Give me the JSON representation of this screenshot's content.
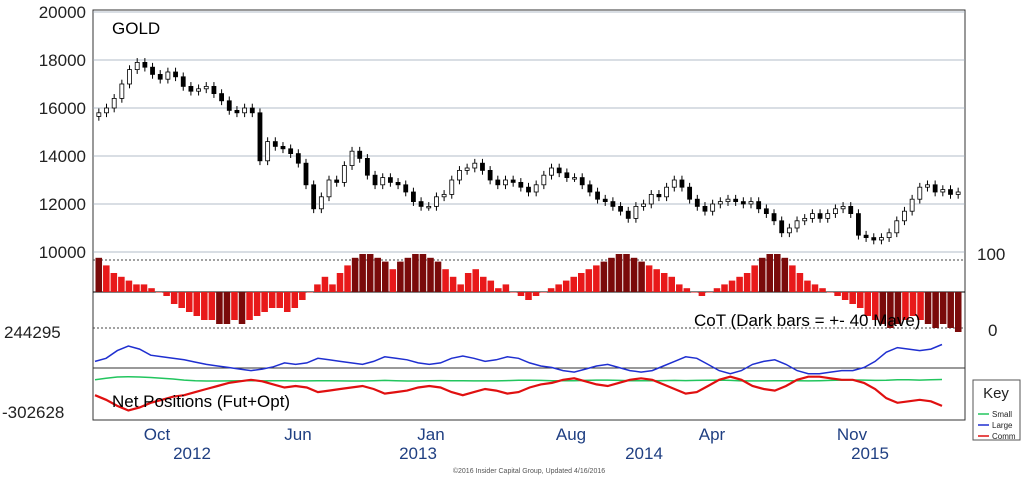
{
  "colors": {
    "frame_bg": "#ffffff",
    "up_candle": "#ffffff",
    "down_candle": "#000000",
    "cot_bar": "#e8191a",
    "cot_dark_bar": "#7a0a0a",
    "small": "#22c55e",
    "large": "#1f2fd0",
    "comm": "#e01010",
    "axis_text": "#1f3f82"
  },
  "chart_data": [
    {
      "type": "candlestick",
      "title": "GOLD",
      "y_ticks": [
        "20000",
        "18000",
        "16000",
        "14000",
        "12000",
        "10000"
      ],
      "ylim": [
        10000,
        20000
      ],
      "grid": true,
      "close": [
        15800,
        16000,
        16400,
        17000,
        17600,
        17900,
        17700,
        17400,
        17200,
        17500,
        17300,
        16900,
        16700,
        16800,
        16900,
        16600,
        16300,
        15900,
        15800,
        16000,
        15800,
        13800,
        14600,
        14400,
        14300,
        14100,
        13700,
        12800,
        11800,
        12300,
        13000,
        12900,
        13600,
        14200,
        13900,
        13200,
        12800,
        13100,
        12900,
        12800,
        12500,
        12100,
        11900,
        11900,
        12300,
        12400,
        13000,
        13400,
        13500,
        13700,
        13400,
        13000,
        12800,
        13000,
        12900,
        12700,
        12500,
        12800,
        13200,
        13500,
        13300,
        13100,
        13100,
        12800,
        12500,
        12200,
        12100,
        11900,
        11700,
        11400,
        11900,
        12000,
        12400,
        12300,
        12700,
        13000,
        12700,
        12200,
        11900,
        11700,
        12000,
        12100,
        12200,
        12100,
        12000,
        12100,
        11800,
        11600,
        11300,
        10800,
        11000,
        11300,
        11400,
        11600,
        11400,
        11600,
        11800,
        11900,
        11600,
        10700,
        10600,
        10500,
        10600,
        10800,
        11300,
        11700,
        12200,
        12700,
        12800,
        12500,
        12600,
        12400,
        12500
      ],
      "ohlc_note": ""
    },
    {
      "type": "bar",
      "title": "CoT (Dark bars = +- 40 Mave)",
      "y_ticks": [
        "100",
        "0"
      ],
      "ylim": [
        0,
        100
      ],
      "values": [
        95,
        85,
        75,
        70,
        65,
        60,
        60,
        55,
        50,
        45,
        35,
        30,
        25,
        20,
        15,
        15,
        10,
        10,
        15,
        10,
        15,
        20,
        25,
        30,
        30,
        25,
        30,
        40,
        50,
        60,
        70,
        60,
        75,
        85,
        95,
        100,
        100,
        95,
        90,
        80,
        90,
        95,
        100,
        100,
        95,
        90,
        80,
        70,
        60,
        75,
        80,
        70,
        65,
        55,
        60,
        50,
        45,
        40,
        45,
        50,
        55,
        60,
        65,
        70,
        75,
        80,
        85,
        90,
        95,
        100,
        100,
        95,
        90,
        85,
        80,
        75,
        70,
        60,
        55,
        50,
        45,
        50,
        55,
        60,
        65,
        70,
        75,
        85,
        95,
        100,
        100,
        95,
        85,
        75,
        65,
        60,
        55,
        50,
        45,
        40,
        35,
        30,
        20,
        15,
        10,
        5,
        10,
        15,
        20,
        15,
        10,
        5,
        10,
        5,
        0
      ],
      "dark_bars_note": ""
    },
    {
      "type": "line",
      "title": "Net Positions (Fut+Opt)",
      "y_ticks": [
        "244295",
        "-302628"
      ],
      "ylim": [
        -302628,
        244295
      ],
      "x_ticks": [
        "Oct",
        "Jun",
        "Jan",
        "Aug",
        "Apr",
        "Nov"
      ],
      "x_year_ticks": [
        "2012",
        "2013",
        "2014",
        "2015"
      ],
      "series": [
        {
          "name": "Small",
          "values": [
            -80000,
            -70000,
            -62000,
            -60000,
            -62000,
            -65000,
            -70000,
            -75000,
            -82000,
            -86000,
            -88000,
            -88000,
            -87000,
            -86000,
            -86000,
            -87000,
            -86000,
            -86000,
            -88000,
            -87000,
            -86000,
            -86000,
            -87000,
            -88000,
            -88000,
            -86000,
            -84000,
            -86000,
            -88000,
            -88000,
            -86000,
            -85000,
            -86000,
            -86000,
            -87000,
            -87000,
            -87000,
            -85000,
            -83000,
            -83000,
            -84000,
            -86000,
            -86000,
            -86000,
            -84000,
            -82000,
            -82000,
            -84000,
            -86000,
            -86000,
            -86000,
            -85000,
            -84000,
            -85000,
            -84000,
            -83000,
            -82000,
            -84000,
            -87000,
            -87000,
            -87000,
            -86000,
            -86000,
            -86000,
            -87000,
            -86000,
            -84000,
            -82000,
            -81000,
            -82000,
            -84000,
            -83000,
            -80000,
            -80000,
            -82000,
            -80000,
            -78000
          ]
        },
        {
          "name": "Large",
          "values": [
            40000,
            60000,
            110000,
            140000,
            120000,
            80000,
            70000,
            60000,
            50000,
            35000,
            20000,
            10000,
            0,
            -10000,
            -20000,
            -10000,
            5000,
            30000,
            20000,
            30000,
            60000,
            50000,
            40000,
            30000,
            20000,
            40000,
            70000,
            60000,
            50000,
            30000,
            20000,
            30000,
            60000,
            75000,
            60000,
            40000,
            50000,
            70000,
            60000,
            30000,
            10000,
            0,
            -20000,
            -30000,
            -10000,
            10000,
            20000,
            0,
            -20000,
            -30000,
            -20000,
            10000,
            40000,
            70000,
            60000,
            20000,
            -20000,
            -40000,
            -20000,
            20000,
            40000,
            50000,
            20000,
            -20000,
            -40000,
            -40000,
            -30000,
            -20000,
            -20000,
            0,
            40000,
            100000,
            130000,
            120000,
            110000,
            120000,
            150000
          ]
        },
        {
          "name": "Comm",
          "values": [
            -180000,
            -210000,
            -250000,
            -280000,
            -260000,
            -230000,
            -210000,
            -190000,
            -180000,
            -160000,
            -140000,
            -120000,
            -100000,
            -90000,
            -80000,
            -90000,
            -110000,
            -130000,
            -120000,
            -130000,
            -160000,
            -150000,
            -140000,
            -130000,
            -120000,
            -140000,
            -170000,
            -160000,
            -150000,
            -130000,
            -120000,
            -130000,
            -160000,
            -180000,
            -160000,
            -140000,
            -150000,
            -170000,
            -160000,
            -130000,
            -110000,
            -100000,
            -80000,
            -70000,
            -90000,
            -110000,
            -120000,
            -100000,
            -80000,
            -70000,
            -80000,
            -110000,
            -140000,
            -170000,
            -160000,
            -120000,
            -80000,
            -60000,
            -80000,
            -120000,
            -140000,
            -150000,
            -120000,
            -80000,
            -60000,
            -60000,
            -70000,
            -80000,
            -80000,
            -100000,
            -140000,
            -200000,
            -230000,
            -220000,
            -210000,
            -220000,
            -250000
          ]
        }
      ]
    }
  ],
  "legend": {
    "title": "Key",
    "items": [
      "Small",
      "Large",
      "Comm"
    ]
  },
  "footer": "©2016 Insider Capital Group, Updated 4/16/2016"
}
